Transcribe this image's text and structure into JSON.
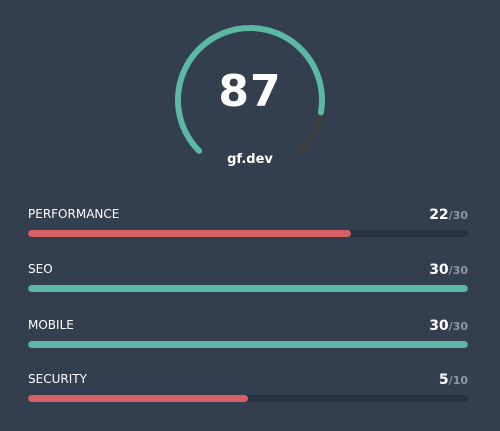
{
  "score": {
    "value": "87",
    "fraction": 0.87,
    "site": "gf.dev"
  },
  "colors": {
    "background": "#333e4f",
    "good": "#5ab8a4",
    "bad": "#d85f65",
    "track": "#273242",
    "gauge_track": "#3e3e3e"
  },
  "metrics": [
    {
      "label": "PERFORMANCE",
      "value": "22",
      "max": "/30",
      "fraction": 0.733,
      "status": "bad"
    },
    {
      "label": "SEO",
      "value": "30",
      "max": "/30",
      "fraction": 1.0,
      "status": "good"
    },
    {
      "label": "MOBILE",
      "value": "30",
      "max": "/30",
      "fraction": 1.0,
      "status": "good"
    },
    {
      "label": "SECURITY",
      "value": "5",
      "max": "/10",
      "fraction": 0.5,
      "status": "bad"
    }
  ]
}
